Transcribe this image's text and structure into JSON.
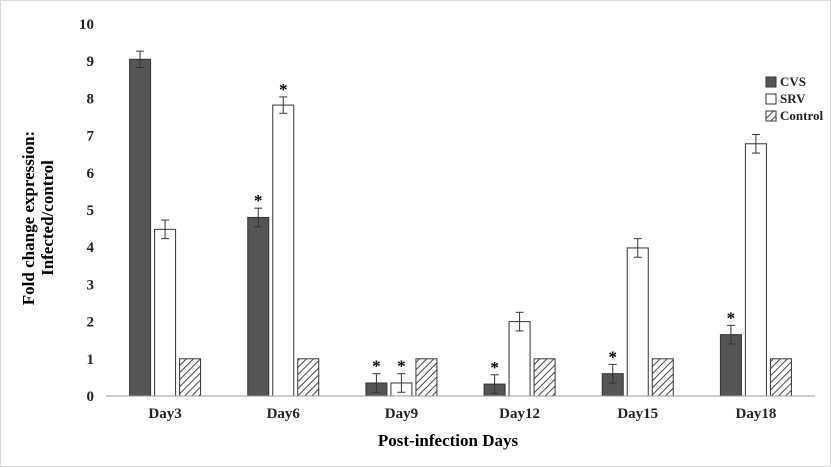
{
  "chart_data": {
    "type": "bar",
    "title": "",
    "xlabel": "Post-infection Days",
    "ylabel_line1": "Fold change expression:",
    "ylabel_line2": "Infected/control",
    "ylim": [
      0,
      10
    ],
    "yticks": [
      "0",
      "1",
      "2",
      "3",
      "4",
      "5",
      "6",
      "7",
      "8",
      "9",
      "10"
    ],
    "grid": false,
    "legend_position": "top-right",
    "categories": [
      "Day3",
      "Day6",
      "Day9",
      "Day12",
      "Day15",
      "Day18"
    ],
    "significance_marker": "*",
    "series": [
      {
        "name": "CVS",
        "fill": "#555555",
        "pattern": "solid",
        "values": [
          9.05,
          4.8,
          0.35,
          0.32,
          0.6,
          1.65
        ],
        "errors": [
          0.22,
          0.25,
          0.25,
          0.25,
          0.25,
          0.25
        ],
        "significant": [
          false,
          true,
          true,
          true,
          true,
          true
        ]
      },
      {
        "name": "SRV",
        "fill": "#ffffff",
        "pattern": "solid",
        "values": [
          4.48,
          7.82,
          0.35,
          2.0,
          3.98,
          6.78
        ],
        "errors": [
          0.25,
          0.22,
          0.25,
          0.25,
          0.25,
          0.25
        ],
        "significant": [
          false,
          true,
          true,
          false,
          false,
          false
        ]
      },
      {
        "name": "Control",
        "fill": "#ffffff",
        "pattern": "hatch",
        "values": [
          1,
          1,
          1,
          1,
          1,
          1
        ],
        "errors": [
          0,
          0,
          0,
          0,
          0,
          0
        ],
        "significant": [
          false,
          false,
          false,
          false,
          false,
          false
        ]
      }
    ]
  }
}
